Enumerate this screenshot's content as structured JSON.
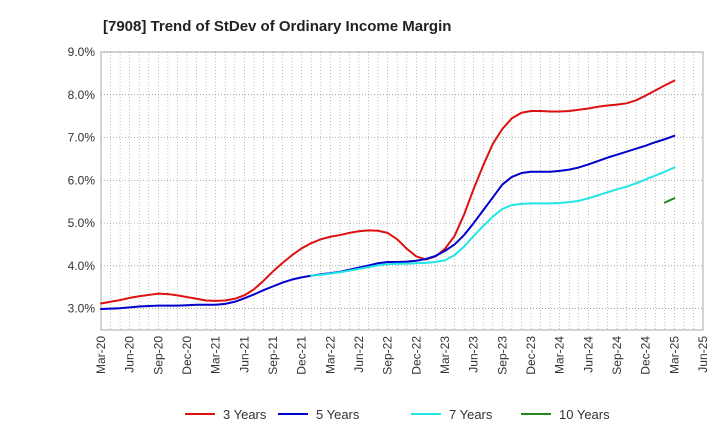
{
  "chart_data": {
    "type": "line",
    "title": "[7908]  Trend of StDev of Ordinary Income Margin",
    "xlabel": "",
    "ylabel": "",
    "x_ticks": [
      "Mar-20",
      "Jun-20",
      "Sep-20",
      "Dec-20",
      "Mar-21",
      "Jun-21",
      "Sep-21",
      "Dec-21",
      "Mar-22",
      "Jun-22",
      "Sep-22",
      "Dec-22",
      "Mar-23",
      "Jun-23",
      "Sep-23",
      "Dec-23",
      "Mar-24",
      "Jun-24",
      "Sep-24",
      "Dec-24",
      "Mar-25",
      "Jun-25"
    ],
    "y_ticks": [
      "3.0%",
      "4.0%",
      "5.0%",
      "6.0%",
      "7.0%",
      "8.0%",
      "9.0%"
    ],
    "ylim": [
      2.5,
      9.0
    ],
    "grid": true,
    "legend_position": "bottom",
    "x": [
      "Mar-20",
      "Apr-20",
      "May-20",
      "Jun-20",
      "Jul-20",
      "Aug-20",
      "Sep-20",
      "Oct-20",
      "Nov-20",
      "Dec-20",
      "Jan-21",
      "Feb-21",
      "Mar-21",
      "Apr-21",
      "May-21",
      "Jun-21",
      "Jul-21",
      "Aug-21",
      "Sep-21",
      "Oct-21",
      "Nov-21",
      "Dec-21",
      "Jan-22",
      "Feb-22",
      "Mar-22",
      "Apr-22",
      "May-22",
      "Jun-22",
      "Jul-22",
      "Aug-22",
      "Sep-22",
      "Oct-22",
      "Nov-22",
      "Dec-22",
      "Jan-23",
      "Feb-23",
      "Mar-23",
      "Apr-23",
      "May-23",
      "Jun-23",
      "Jul-23",
      "Aug-23",
      "Sep-23",
      "Oct-23",
      "Nov-23",
      "Dec-23",
      "Jan-24",
      "Feb-24",
      "Mar-24",
      "Apr-24",
      "May-24",
      "Jun-24",
      "Jul-24",
      "Aug-24",
      "Sep-24",
      "Oct-24",
      "Nov-24",
      "Dec-24",
      "Jan-25",
      "Feb-25",
      "Mar-25"
    ],
    "series": [
      {
        "name": "3 Years",
        "color": "#dd1111",
        "values": [
          3.12,
          3.16,
          3.2,
          3.25,
          3.29,
          3.32,
          3.35,
          3.34,
          3.31,
          3.27,
          3.23,
          3.19,
          3.18,
          3.19,
          3.23,
          3.31,
          3.45,
          3.65,
          3.87,
          4.07,
          4.25,
          4.41,
          4.53,
          4.62,
          4.68,
          4.72,
          4.77,
          4.81,
          4.83,
          4.82,
          4.77,
          4.62,
          4.4,
          4.22,
          4.15,
          4.22,
          4.4,
          4.7,
          5.2,
          5.8,
          6.35,
          6.85,
          7.2,
          7.45,
          7.58,
          7.62,
          7.62,
          7.61,
          7.61,
          7.62,
          7.65,
          7.68,
          7.72,
          7.75,
          7.77,
          7.8,
          7.87,
          7.98,
          8.1,
          8.22,
          8.33
        ]
      },
      {
        "name": "5 Years",
        "color": "#0000cc",
        "values": [
          2.99,
          3.0,
          3.01,
          3.03,
          3.05,
          3.06,
          3.07,
          3.07,
          3.07,
          3.08,
          3.09,
          3.09,
          3.09,
          3.11,
          3.16,
          3.24,
          3.33,
          3.43,
          3.52,
          3.61,
          3.68,
          3.73,
          3.77,
          3.8,
          3.83,
          3.86,
          3.91,
          3.96,
          4.01,
          4.06,
          4.09,
          4.09,
          4.1,
          4.12,
          4.16,
          4.23,
          4.35,
          4.5,
          4.72,
          5.0,
          5.3,
          5.6,
          5.9,
          6.08,
          6.17,
          6.2,
          6.2,
          6.2,
          6.22,
          6.25,
          6.3,
          6.37,
          6.45,
          6.53,
          6.6,
          6.67,
          6.74,
          6.81,
          6.89,
          6.96,
          7.04
        ]
      },
      {
        "name": "7 Years",
        "color": "#22e5e5",
        "values": [
          null,
          null,
          null,
          null,
          null,
          null,
          null,
          null,
          null,
          null,
          null,
          null,
          null,
          null,
          null,
          null,
          null,
          null,
          null,
          null,
          null,
          null,
          3.77,
          3.79,
          3.82,
          3.85,
          3.89,
          3.93,
          3.97,
          4.01,
          4.04,
          4.05,
          4.05,
          4.06,
          4.07,
          4.09,
          4.13,
          4.25,
          4.45,
          4.7,
          4.93,
          5.15,
          5.33,
          5.42,
          5.45,
          5.46,
          5.46,
          5.46,
          5.47,
          5.49,
          5.52,
          5.58,
          5.65,
          5.72,
          5.79,
          5.85,
          5.93,
          6.02,
          6.11,
          6.2,
          6.3
        ]
      },
      {
        "name": "10 Years",
        "color": "#228822",
        "values": [
          null,
          null,
          null,
          null,
          null,
          null,
          null,
          null,
          null,
          null,
          null,
          null,
          null,
          null,
          null,
          null,
          null,
          null,
          null,
          null,
          null,
          null,
          null,
          null,
          null,
          null,
          null,
          null,
          null,
          null,
          null,
          null,
          null,
          null,
          null,
          null,
          null,
          null,
          null,
          null,
          null,
          null,
          null,
          null,
          null,
          null,
          null,
          null,
          null,
          null,
          null,
          null,
          null,
          null,
          null,
          null,
          null,
          null,
          null,
          5.48,
          5.58
        ]
      }
    ]
  }
}
